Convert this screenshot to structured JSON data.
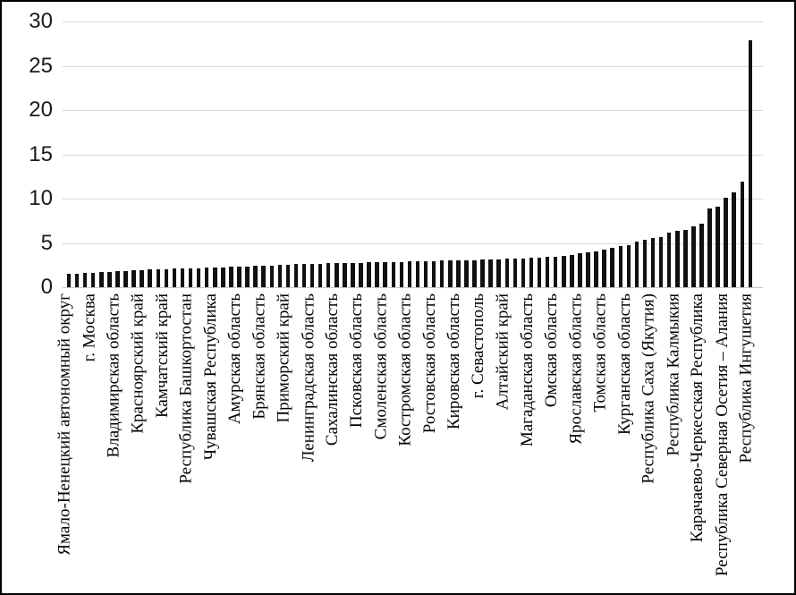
{
  "chart_data": {
    "type": "bar",
    "title": "",
    "xlabel": "",
    "ylabel": "",
    "ylim": [
      0,
      30
    ],
    "yticks": [
      0,
      5,
      10,
      15,
      20,
      25,
      30
    ],
    "grid": "horizontal",
    "legend": "none",
    "bar_color": "#111111",
    "gridline_color": "#d9d9d9",
    "axis_line_color": "#c6c6c6",
    "bar_count": 85,
    "category_label_interval": 3,
    "categories_shown": [
      "Ямало-Ненецкий автономный округ",
      "г. Москва",
      "Владимирская область",
      "Красноярский край",
      "Камчатский край",
      "Республика Башкортостан",
      "Чувашская Республика",
      "Амурская область",
      "Брянская область",
      "Приморский край",
      "Ленинградская область",
      "Сахалинская область",
      "Псковская область",
      "Смоленская область",
      "Костромская область",
      "Ростовская область",
      "Кировская область",
      "г. Севастополь",
      "Алтайский край",
      "Магаданская область",
      "Омская область",
      "Ярославская область",
      "Томская область",
      "Курганская область",
      "Республика Саха (Якутия)",
      "Республика Калмыкия",
      "Карачаево-Черкесская Республика",
      "Республика Северная Осетия – Алания",
      "Республика Ингушетия"
    ],
    "values": [
      1.5,
      1.55,
      1.6,
      1.65,
      1.7,
      1.75,
      1.8,
      1.85,
      1.9,
      1.95,
      2.0,
      2.0,
      2.05,
      2.1,
      2.1,
      2.15,
      2.15,
      2.2,
      2.2,
      2.25,
      2.3,
      2.3,
      2.35,
      2.4,
      2.4,
      2.45,
      2.5,
      2.55,
      2.6,
      2.6,
      2.65,
      2.65,
      2.7,
      2.7,
      2.7,
      2.75,
      2.75,
      2.8,
      2.8,
      2.8,
      2.85,
      2.85,
      2.9,
      2.9,
      2.95,
      2.95,
      3.0,
      3.0,
      3.0,
      3.05,
      3.05,
      3.1,
      3.1,
      3.15,
      3.2,
      3.2,
      3.25,
      3.3,
      3.35,
      3.4,
      3.45,
      3.55,
      3.65,
      3.8,
      3.9,
      4.0,
      4.2,
      4.45,
      4.65,
      4.7,
      5.15,
      5.4,
      5.6,
      5.7,
      6.2,
      6.35,
      6.5,
      6.9,
      7.2,
      8.9,
      9.1,
      10.1,
      10.75,
      11.9,
      27.9
    ]
  }
}
